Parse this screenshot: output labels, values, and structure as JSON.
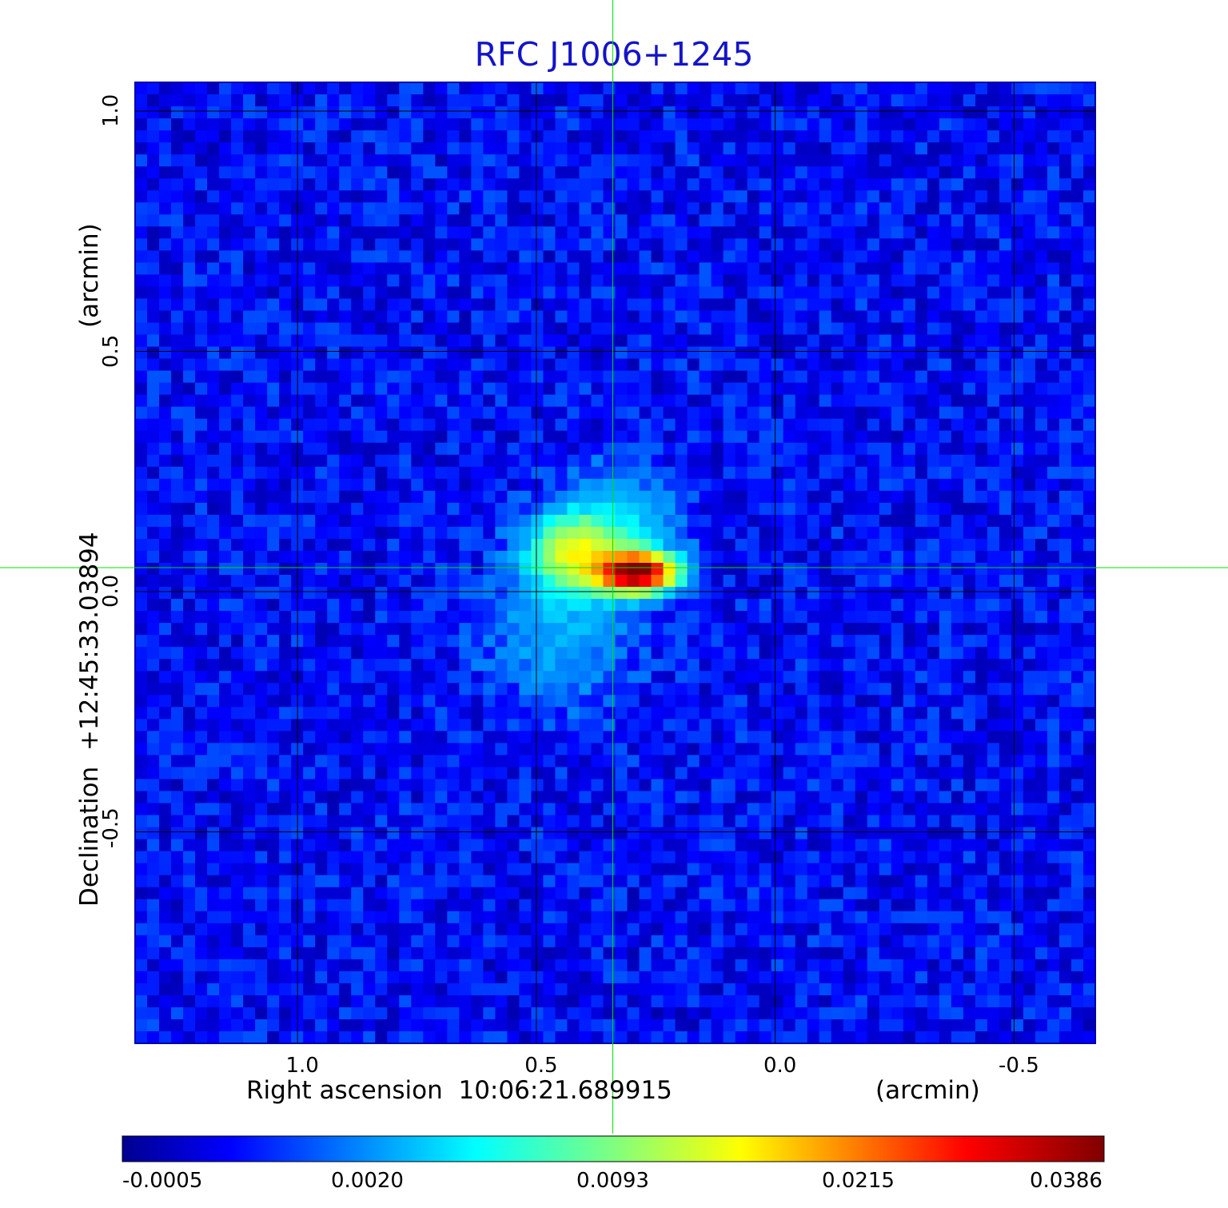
{
  "chart_data": {
    "type": "heatmap",
    "title": "RFC J1006+1245",
    "xlabel": "Right ascension  10:06:21.689915",
    "xunit": "(arcmin)",
    "ylabel": "Declination  +12:45:33.03894",
    "yunit": "(arcmin)",
    "xlim": [
      1.34,
      -0.67
    ],
    "ylim": [
      -0.94,
      1.06
    ],
    "x_ticks": [
      "1.0",
      "0.5",
      "0.0",
      "-0.5"
    ],
    "x_tick_values": [
      1.0,
      0.5,
      0.0,
      -0.5
    ],
    "y_ticks": [
      "1.0",
      "0.5",
      "0.0",
      "-0.5"
    ],
    "y_tick_values": [
      1.0,
      0.5,
      0.0,
      -0.5
    ],
    "grid": true,
    "crosshair": {
      "x": 0.34,
      "y": 0.05,
      "color": "#00e000"
    },
    "colormap": "jet",
    "colorbar": {
      "ticks": [
        "-0.0005",
        "0.0020",
        "0.0093",
        "0.0215",
        "0.0386"
      ],
      "values": [
        -0.0005,
        0.002,
        0.0093,
        0.0215,
        0.0386
      ],
      "placement": "bottom"
    },
    "sources": [
      {
        "x": 0.29,
        "y": 0.04,
        "peak": 0.0386,
        "sigma_x": 0.05,
        "sigma_y": 0.025
      },
      {
        "x": 0.42,
        "y": 0.08,
        "peak": 0.012,
        "sigma_x": 0.06,
        "sigma_y": 0.05
      },
      {
        "x": 0.33,
        "y": 0.12,
        "peak": 0.004,
        "sigma_x": 0.08,
        "sigma_y": 0.08
      },
      {
        "x": 0.45,
        "y": -0.08,
        "peak": 0.0025,
        "sigma_x": 0.1,
        "sigma_y": 0.1
      }
    ],
    "background_level": 0.0008
  }
}
